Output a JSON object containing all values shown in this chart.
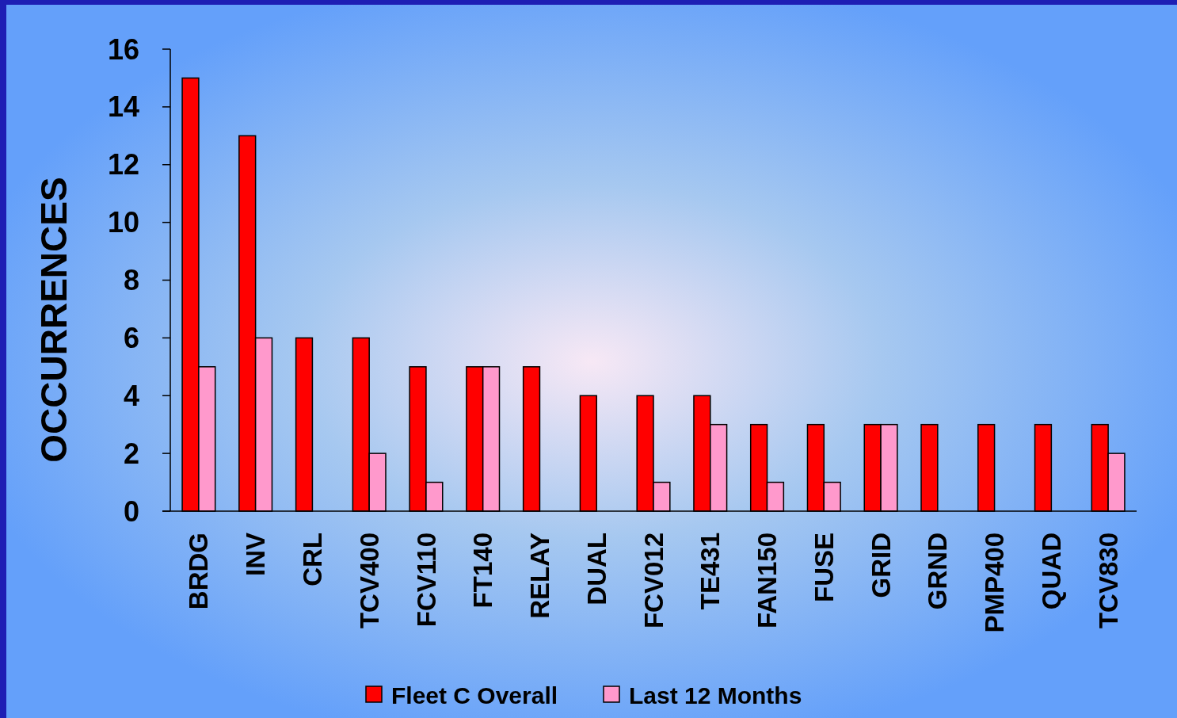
{
  "chart_data": {
    "type": "bar",
    "ylabel": "OCCURRENCES",
    "categories": [
      "BRDG",
      "INV",
      "CRL",
      "TCV400",
      "FCV110",
      "FT140",
      "RELAY",
      "DUAL",
      "FCV012",
      "TE431",
      "FAN150",
      "FUSE",
      "GRID",
      "GRND",
      "PMP400",
      "QUAD",
      "TCV830"
    ],
    "series": [
      {
        "name": "Fleet C Overall",
        "color": "#ff0000",
        "values": [
          15,
          13,
          6,
          6,
          5,
          5,
          5,
          4,
          4,
          4,
          3,
          3,
          3,
          3,
          3,
          3,
          3
        ]
      },
      {
        "name": "Last 12 Months",
        "color": "#ff99cc",
        "values": [
          5,
          6,
          null,
          2,
          1,
          5,
          null,
          null,
          1,
          3,
          1,
          1,
          3,
          null,
          null,
          null,
          2
        ]
      }
    ],
    "ylim": [
      0,
      16
    ],
    "yticks": [
      0,
      2,
      4,
      6,
      8,
      10,
      12,
      14,
      16
    ],
    "grid": false,
    "legend": "bottom"
  }
}
